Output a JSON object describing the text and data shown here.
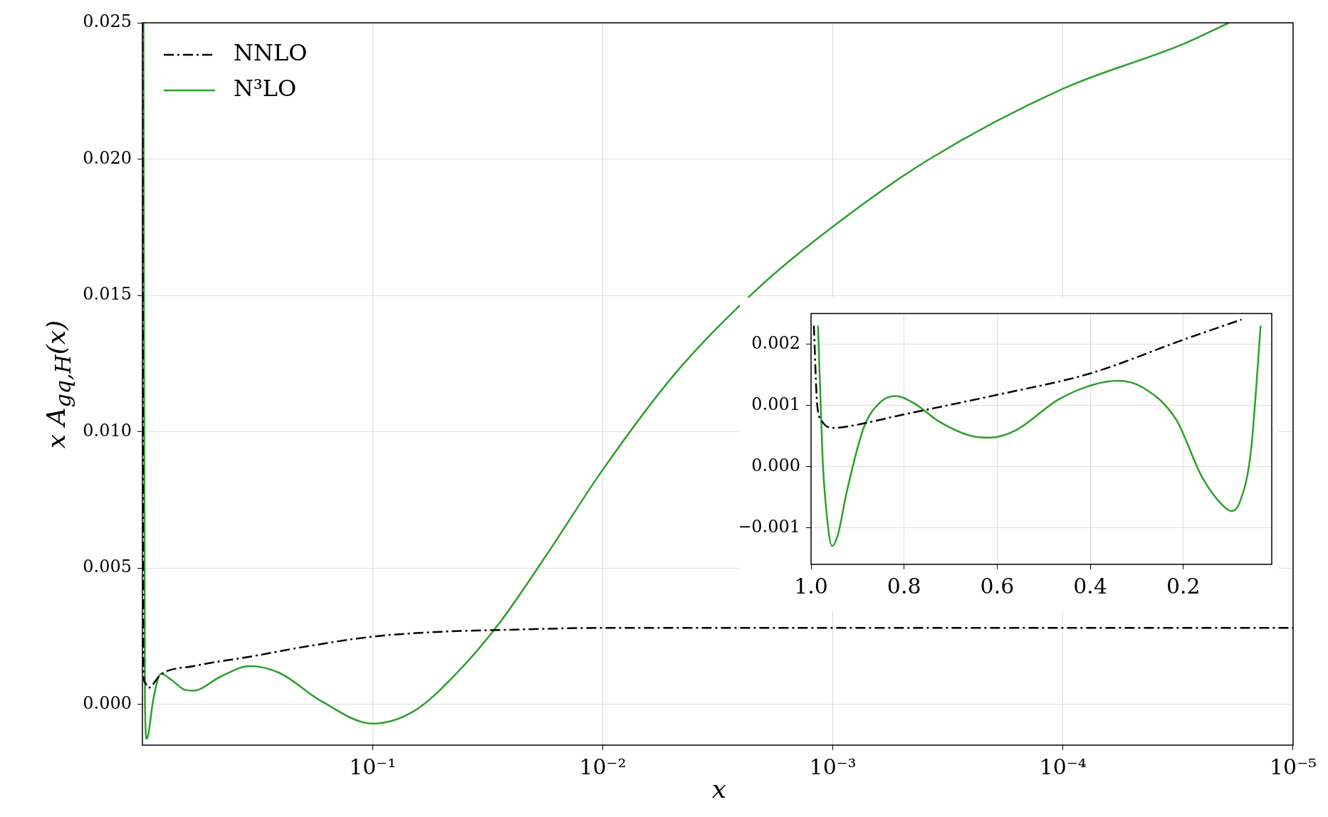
{
  "chart_data": [
    {
      "type": "line",
      "xlabel": "x",
      "ylabel": "x A$_{gq,H}$(x)",
      "log": "x",
      "xlim": [
        1,
        1e-05
      ],
      "xticks": [
        {
          "value": 0.1,
          "label": "10⁻¹"
        },
        {
          "value": 0.01,
          "label": "10⁻²"
        },
        {
          "value": 0.001,
          "label": "10⁻³"
        },
        {
          "value": 0.0001,
          "label": "10⁻⁴"
        },
        {
          "value": 1e-05,
          "label": "10⁻⁵"
        }
      ],
      "ylim": [
        -0.0015,
        0.025
      ],
      "yticks": [
        {
          "value": 0,
          "label": "0.000"
        },
        {
          "value": 0.005,
          "label": "0.005"
        },
        {
          "value": 0.01,
          "label": "0.010"
        },
        {
          "value": 0.015,
          "label": "0.015"
        },
        {
          "value": 0.02,
          "label": "0.020"
        },
        {
          "value": 0.025,
          "label": "0.025"
        }
      ],
      "grid": true,
      "legend": "top left",
      "series": [
        {
          "name": "NNLO",
          "color": "#000000",
          "line_style": "dashdot",
          "x": [
            0.999,
            0.99,
            0.975,
            0.943,
            0.83,
            0.6,
            0.328,
            0.2,
            0.1,
            0.05,
            0.026,
            0.01,
            0.001,
            0.0001,
            1e-05
          ],
          "values": [
            0.025,
            0.0012,
            0.0008,
            0.0006,
            0.0011,
            0.0014,
            0.00177,
            0.0021,
            0.00248,
            0.00266,
            0.00273,
            0.0028,
            0.0028,
            0.0028,
            0.0028
          ]
        },
        {
          "name": "N³LO",
          "color": "#2ca02c",
          "line_style": "solid",
          "x": [
            0.99,
            0.975,
            0.958,
            0.942,
            0.9,
            0.83,
            0.75,
            0.65,
            0.6,
            0.46,
            0.342,
            0.254,
            0.166,
            0.1,
            0.066,
            0.043,
            0.028,
            0.017,
            0.01,
            0.0048,
            0.0021,
            0.001,
            0.00039,
            0.0001,
            3e-05,
            1.9e-05
          ],
          "values": [
            0.025,
            0.0001,
            -0.00127,
            -0.0011,
            0.0001,
            0.00112,
            0.0009,
            0.00052,
            0.0005,
            0.001,
            0.0014,
            0.00115,
            0.0001,
            -0.00071,
            -0.00025,
            0.00115,
            0.003,
            0.00565,
            0.0086,
            0.01217,
            0.01528,
            0.01752,
            0.01994,
            0.02258,
            0.02422,
            0.025
          ]
        }
      ]
    },
    {
      "type": "line",
      "xlim": [
        1,
        0.01
      ],
      "xticks": [
        {
          "value": 1,
          "label": "1.0"
        },
        0.8,
        0.6,
        0.4,
        0.2
      ],
      "ylim": [
        -0.0016,
        0.0025
      ],
      "yticks": [
        {
          "value": -0.001,
          "label": "−0.001"
        },
        {
          "value": 0,
          "label": "0.000"
        },
        {
          "value": 0.001,
          "label": "0.001"
        },
        {
          "value": 0.002,
          "label": "0.002"
        }
      ],
      "grid": true,
      "series": [
        {
          "color": "#000000",
          "line_style": "dashdot",
          "x": [
            0.994,
            0.987,
            0.978,
            0.951,
            0.924,
            0.8,
            0.6,
            0.4,
            0.2,
            0.075
          ],
          "values": [
            0.0023,
            0.00103,
            0.00076,
            0.00063,
            0.00065,
            0.00085,
            0.00117,
            0.00152,
            0.00207,
            0.0024
          ]
        },
        {
          "color": "#2ca02c",
          "line_style": "solid",
          "x": [
            0.985,
            0.975,
            0.969,
            0.955,
            0.942,
            0.924,
            0.887,
            0.851,
            0.818,
            0.778,
            0.724,
            0.651,
            0.615,
            0.56,
            0.469,
            0.396,
            0.342,
            0.287,
            0.215,
            0.16,
            0.115,
            0.096,
            0.078,
            0.055,
            0.042,
            0.034
          ],
          "values": [
            0.0023,
            0.0001,
            -0.00057,
            -0.0013,
            -0.00111,
            -0.00044,
            0.00063,
            0.00105,
            0.00115,
            0.00103,
            0.00073,
            0.00049,
            0.00047,
            0.00059,
            0.00109,
            0.00133,
            0.0014,
            0.00129,
            0.00076,
            -0.00017,
            -0.00064,
            -0.00073,
            -0.00057,
            0.00023,
            0.00143,
            0.0023
          ]
        }
      ]
    }
  ]
}
